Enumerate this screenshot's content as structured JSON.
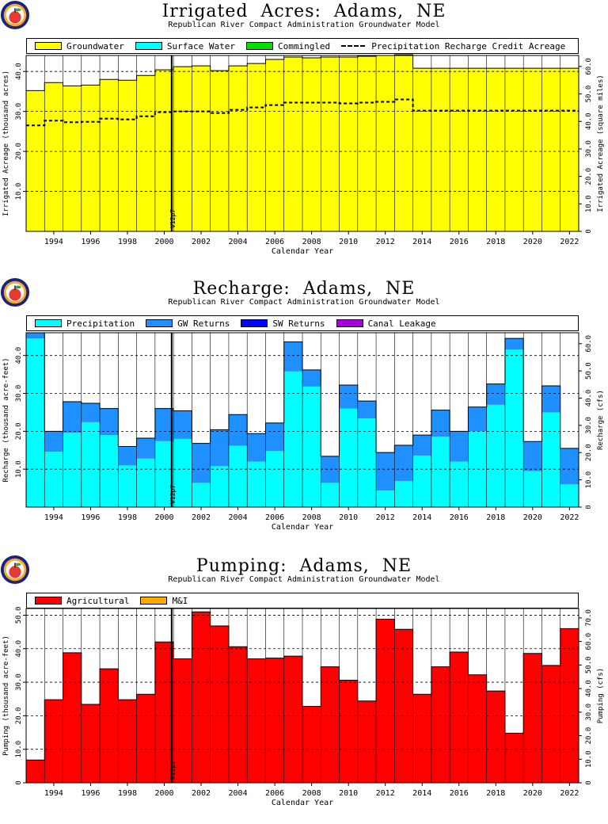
{
  "years": [
    1993,
    1994,
    1995,
    1996,
    1997,
    1998,
    1999,
    2000,
    2001,
    2002,
    2003,
    2004,
    2005,
    2006,
    2007,
    2008,
    2009,
    2010,
    2011,
    2012,
    2013,
    2014,
    2015,
    2016,
    2017,
    2018,
    2019,
    2020,
    2021,
    2022
  ],
  "xticks": [
    "1994",
    "1996",
    "1998",
    "2000",
    "2002",
    "2004",
    "2006",
    "2008",
    "2010",
    "2012",
    "2014",
    "2016",
    "2018",
    "2020",
    "2022"
  ],
  "xlabel": "Calendar Year",
  "marker_label": "V12p7",
  "chart_data": [
    {
      "type": "area",
      "title": "Irrigated  Acres:  Adams,  NE",
      "subtitle": "Republican River Compact Administration Groundwater Model",
      "xlabel": "Calendar Year",
      "ylabel": "Irrigated Acreage (thousand acres)",
      "ylabel_right": "Irrigated Acreage (square miles)",
      "ylim": [
        0,
        44
      ],
      "yticks": [
        "10.0",
        "20.0",
        "30.0",
        "40.0"
      ],
      "yticks_right": [
        "0",
        "10.0",
        "20.0",
        "30.0",
        "40.0",
        "50.0",
        "60.0"
      ],
      "legend_placement": "top",
      "grid": true,
      "series": [
        {
          "name": "Groundwater",
          "color": "#ffff00",
          "values": [
            35.2,
            37.2,
            36.4,
            36.6,
            38.0,
            37.8,
            39.0,
            40.4,
            41.2,
            41.4,
            40.2,
            41.4,
            42.0,
            43.0,
            43.6,
            43.4,
            43.6,
            43.6,
            43.8,
            44.0,
            44.2,
            40.8,
            40.8,
            40.8,
            40.8,
            40.8,
            40.8,
            40.8,
            40.8,
            40.8
          ]
        },
        {
          "name": "Surface Water",
          "color": "#00ffff",
          "values": [
            0,
            0,
            0,
            0,
            0,
            0,
            0,
            0,
            0,
            0,
            0,
            0,
            0,
            0,
            0,
            0,
            0,
            0,
            0,
            0,
            0,
            0,
            0,
            0,
            0,
            0,
            0,
            0,
            0,
            0
          ]
        },
        {
          "name": "Commingled",
          "color": "#00dd00",
          "values": [
            0,
            0,
            0,
            0,
            0,
            0,
            0,
            0,
            0,
            0,
            0,
            0,
            0,
            0,
            0,
            0,
            0,
            0,
            0,
            0,
            0,
            0,
            0,
            0,
            0,
            0,
            0,
            0,
            0,
            0
          ]
        },
        {
          "name": "Precipitation  Recharge  Credit  Acreage",
          "style": "dashed",
          "values": [
            26.5,
            27.7,
            27.3,
            27.4,
            28.2,
            28.0,
            28.8,
            29.8,
            30.0,
            30.0,
            29.6,
            30.4,
            31.0,
            31.6,
            32.2,
            32.2,
            32.2,
            32.0,
            32.2,
            32.4,
            33.0,
            30.2,
            30.2,
            30.2,
            30.2,
            30.2,
            30.2,
            30.2,
            30.2,
            30.2
          ]
        }
      ]
    },
    {
      "type": "area",
      "title": "Recharge:  Adams,  NE",
      "subtitle": "Republican River Compact Administration Groundwater Model",
      "xlabel": "Calendar Year",
      "ylabel": "Recharge (thousand acre-feet)",
      "ylabel_right": "Recharge (cfs)",
      "ylim": [
        0,
        46
      ],
      "yticks": [
        "10.0",
        "20.0",
        "30.0",
        "40.0"
      ],
      "yticks_right": [
        "0",
        "10.0",
        "20.0",
        "30.0",
        "40.0",
        "50.0",
        "60.0"
      ],
      "legend_placement": "top",
      "grid": true,
      "series": [
        {
          "name": "Precipitation",
          "color": "#00ffff",
          "values": [
            44.5,
            14.6,
            19.6,
            22.4,
            19.0,
            11.0,
            12.8,
            17.4,
            18.0,
            6.4,
            10.8,
            16.2,
            12.0,
            14.8,
            35.8,
            31.8,
            6.4,
            26.0,
            23.4,
            4.4,
            6.9,
            13.6,
            18.6,
            12.0,
            20.0,
            27.0,
            41.6,
            9.5,
            25.0,
            6.0
          ]
        },
        {
          "name": "GW  Returns",
          "color": "#1e90ff",
          "values": [
            1.5,
            5.4,
            8.2,
            5.0,
            7.0,
            5.0,
            5.4,
            8.6,
            7.4,
            10.4,
            9.6,
            8.2,
            7.4,
            7.4,
            7.8,
            4.4,
            7.0,
            6.2,
            4.6,
            10.0,
            9.4,
            5.4,
            7.0,
            8.0,
            6.4,
            5.5,
            2.9,
            7.8,
            7.0,
            9.5
          ]
        },
        {
          "name": "SW  Returns",
          "color": "#0000ff",
          "values": [
            0,
            0,
            0,
            0,
            0,
            0,
            0,
            0,
            0,
            0,
            0,
            0,
            0,
            0,
            0,
            0,
            0,
            0,
            0,
            0,
            0,
            0,
            0,
            0,
            0,
            0,
            0,
            0,
            0,
            0
          ]
        },
        {
          "name": "Canal  Leakage",
          "color": "#aa00dd",
          "values": [
            0,
            0,
            0,
            0,
            0,
            0,
            0,
            0,
            0,
            0,
            0,
            0,
            0,
            0,
            0,
            0,
            0,
            0,
            0,
            0,
            0,
            0,
            0,
            0,
            0,
            0,
            0,
            0,
            0,
            0
          ]
        }
      ]
    },
    {
      "type": "bar",
      "title": "Pumping:  Adams,  NE",
      "subtitle": "Republican River Compact Administration Groundwater Model",
      "xlabel": "Calendar Year",
      "ylabel": "Pumping (thousand acre-feet)",
      "ylabel_right": "Pumping (cfs)",
      "ylim": [
        0,
        52
      ],
      "yticks": [
        "0",
        "10.0",
        "20.0",
        "30.0",
        "40.0",
        "50.0"
      ],
      "yticks_right": [
        "0",
        "10.0",
        "20.0",
        "30.0",
        "40.0",
        "50.0",
        "60.0",
        "70.0"
      ],
      "legend_placement": "top",
      "grid": true,
      "series": [
        {
          "name": "Agricultural",
          "color": "#ff0000",
          "values": [
            6.8,
            24.8,
            38.8,
            23.4,
            34.0,
            24.8,
            26.4,
            42.0,
            37.0,
            51.0,
            46.8,
            40.6,
            37.0,
            37.2,
            37.8,
            22.8,
            34.6,
            30.6,
            24.4,
            48.8,
            45.8,
            26.4,
            34.6,
            39.0,
            32.2,
            27.4,
            14.8,
            38.6,
            35.0,
            46.0
          ]
        },
        {
          "name": "M&I",
          "color": "#ffaa00",
          "values": [
            0,
            0,
            0,
            0,
            0,
            0,
            0,
            0,
            0,
            0,
            0,
            0,
            0,
            0,
            0,
            0,
            0,
            0,
            0,
            0,
            0,
            0,
            0,
            0,
            0,
            0,
            0,
            0,
            0,
            0
          ]
        }
      ]
    }
  ]
}
